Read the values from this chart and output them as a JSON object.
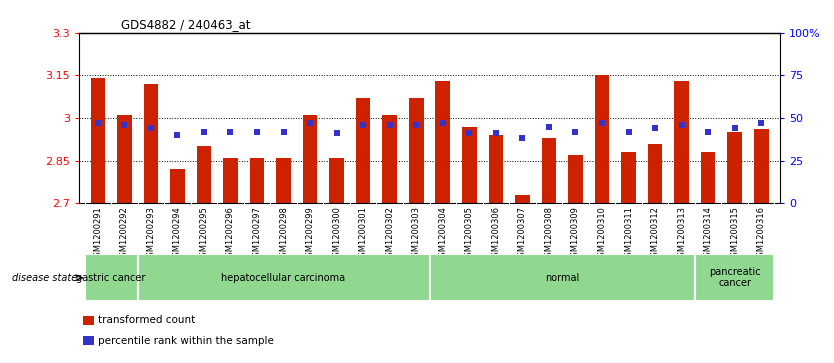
{
  "title": "GDS4882 / 240463_at",
  "samples": [
    "GSM1200291",
    "GSM1200292",
    "GSM1200293",
    "GSM1200294",
    "GSM1200295",
    "GSM1200296",
    "GSM1200297",
    "GSM1200298",
    "GSM1200299",
    "GSM1200300",
    "GSM1200301",
    "GSM1200302",
    "GSM1200303",
    "GSM1200304",
    "GSM1200305",
    "GSM1200306",
    "GSM1200307",
    "GSM1200308",
    "GSM1200309",
    "GSM1200310",
    "GSM1200311",
    "GSM1200312",
    "GSM1200313",
    "GSM1200314",
    "GSM1200315",
    "GSM1200316"
  ],
  "bar_values": [
    3.14,
    3.01,
    3.12,
    2.82,
    2.9,
    2.86,
    2.86,
    2.86,
    3.01,
    2.86,
    3.07,
    3.01,
    3.07,
    3.13,
    2.97,
    2.94,
    2.73,
    2.93,
    2.87,
    3.15,
    2.88,
    2.91,
    3.13,
    2.88,
    2.95,
    2.96
  ],
  "percentile_values": [
    47,
    46,
    44,
    40,
    42,
    42,
    42,
    42,
    47,
    41,
    46,
    46,
    46,
    47,
    41,
    41,
    38,
    45,
    42,
    47,
    42,
    44,
    46,
    42,
    44,
    47
  ],
  "ylim_left": [
    2.7,
    3.3
  ],
  "ylim_right": [
    0,
    100
  ],
  "yticks_left": [
    2.7,
    2.85,
    3.0,
    3.15,
    3.3
  ],
  "ytick_labels_left": [
    "2.7",
    "2.85",
    "3",
    "3.15",
    "3.3"
  ],
  "yticks_right": [
    0,
    25,
    50,
    75,
    100
  ],
  "ytick_labels_right": [
    "0",
    "25",
    "50",
    "75",
    "100%"
  ],
  "hlines": [
    2.85,
    3.0,
    3.15
  ],
  "bar_color": "#cc2200",
  "dot_color": "#3333cc",
  "disease_groups": [
    {
      "label": "gastric cancer",
      "start": 0,
      "end": 2
    },
    {
      "label": "hepatocellular carcinoma",
      "start": 2,
      "end": 13
    },
    {
      "label": "normal",
      "start": 13,
      "end": 23
    },
    {
      "label": "pancreatic\ncancer",
      "start": 23,
      "end": 26
    }
  ],
  "disease_state_label": "disease state",
  "legend_items": [
    {
      "color": "#cc2200",
      "label": "transformed count"
    },
    {
      "color": "#3333cc",
      "label": "percentile rank within the sample"
    }
  ],
  "bar_width": 0.55,
  "background_chart": "#ffffff",
  "xtick_bg_color": "#d0d0d0",
  "group_green": "#90d890",
  "group_border": "#ffffff"
}
